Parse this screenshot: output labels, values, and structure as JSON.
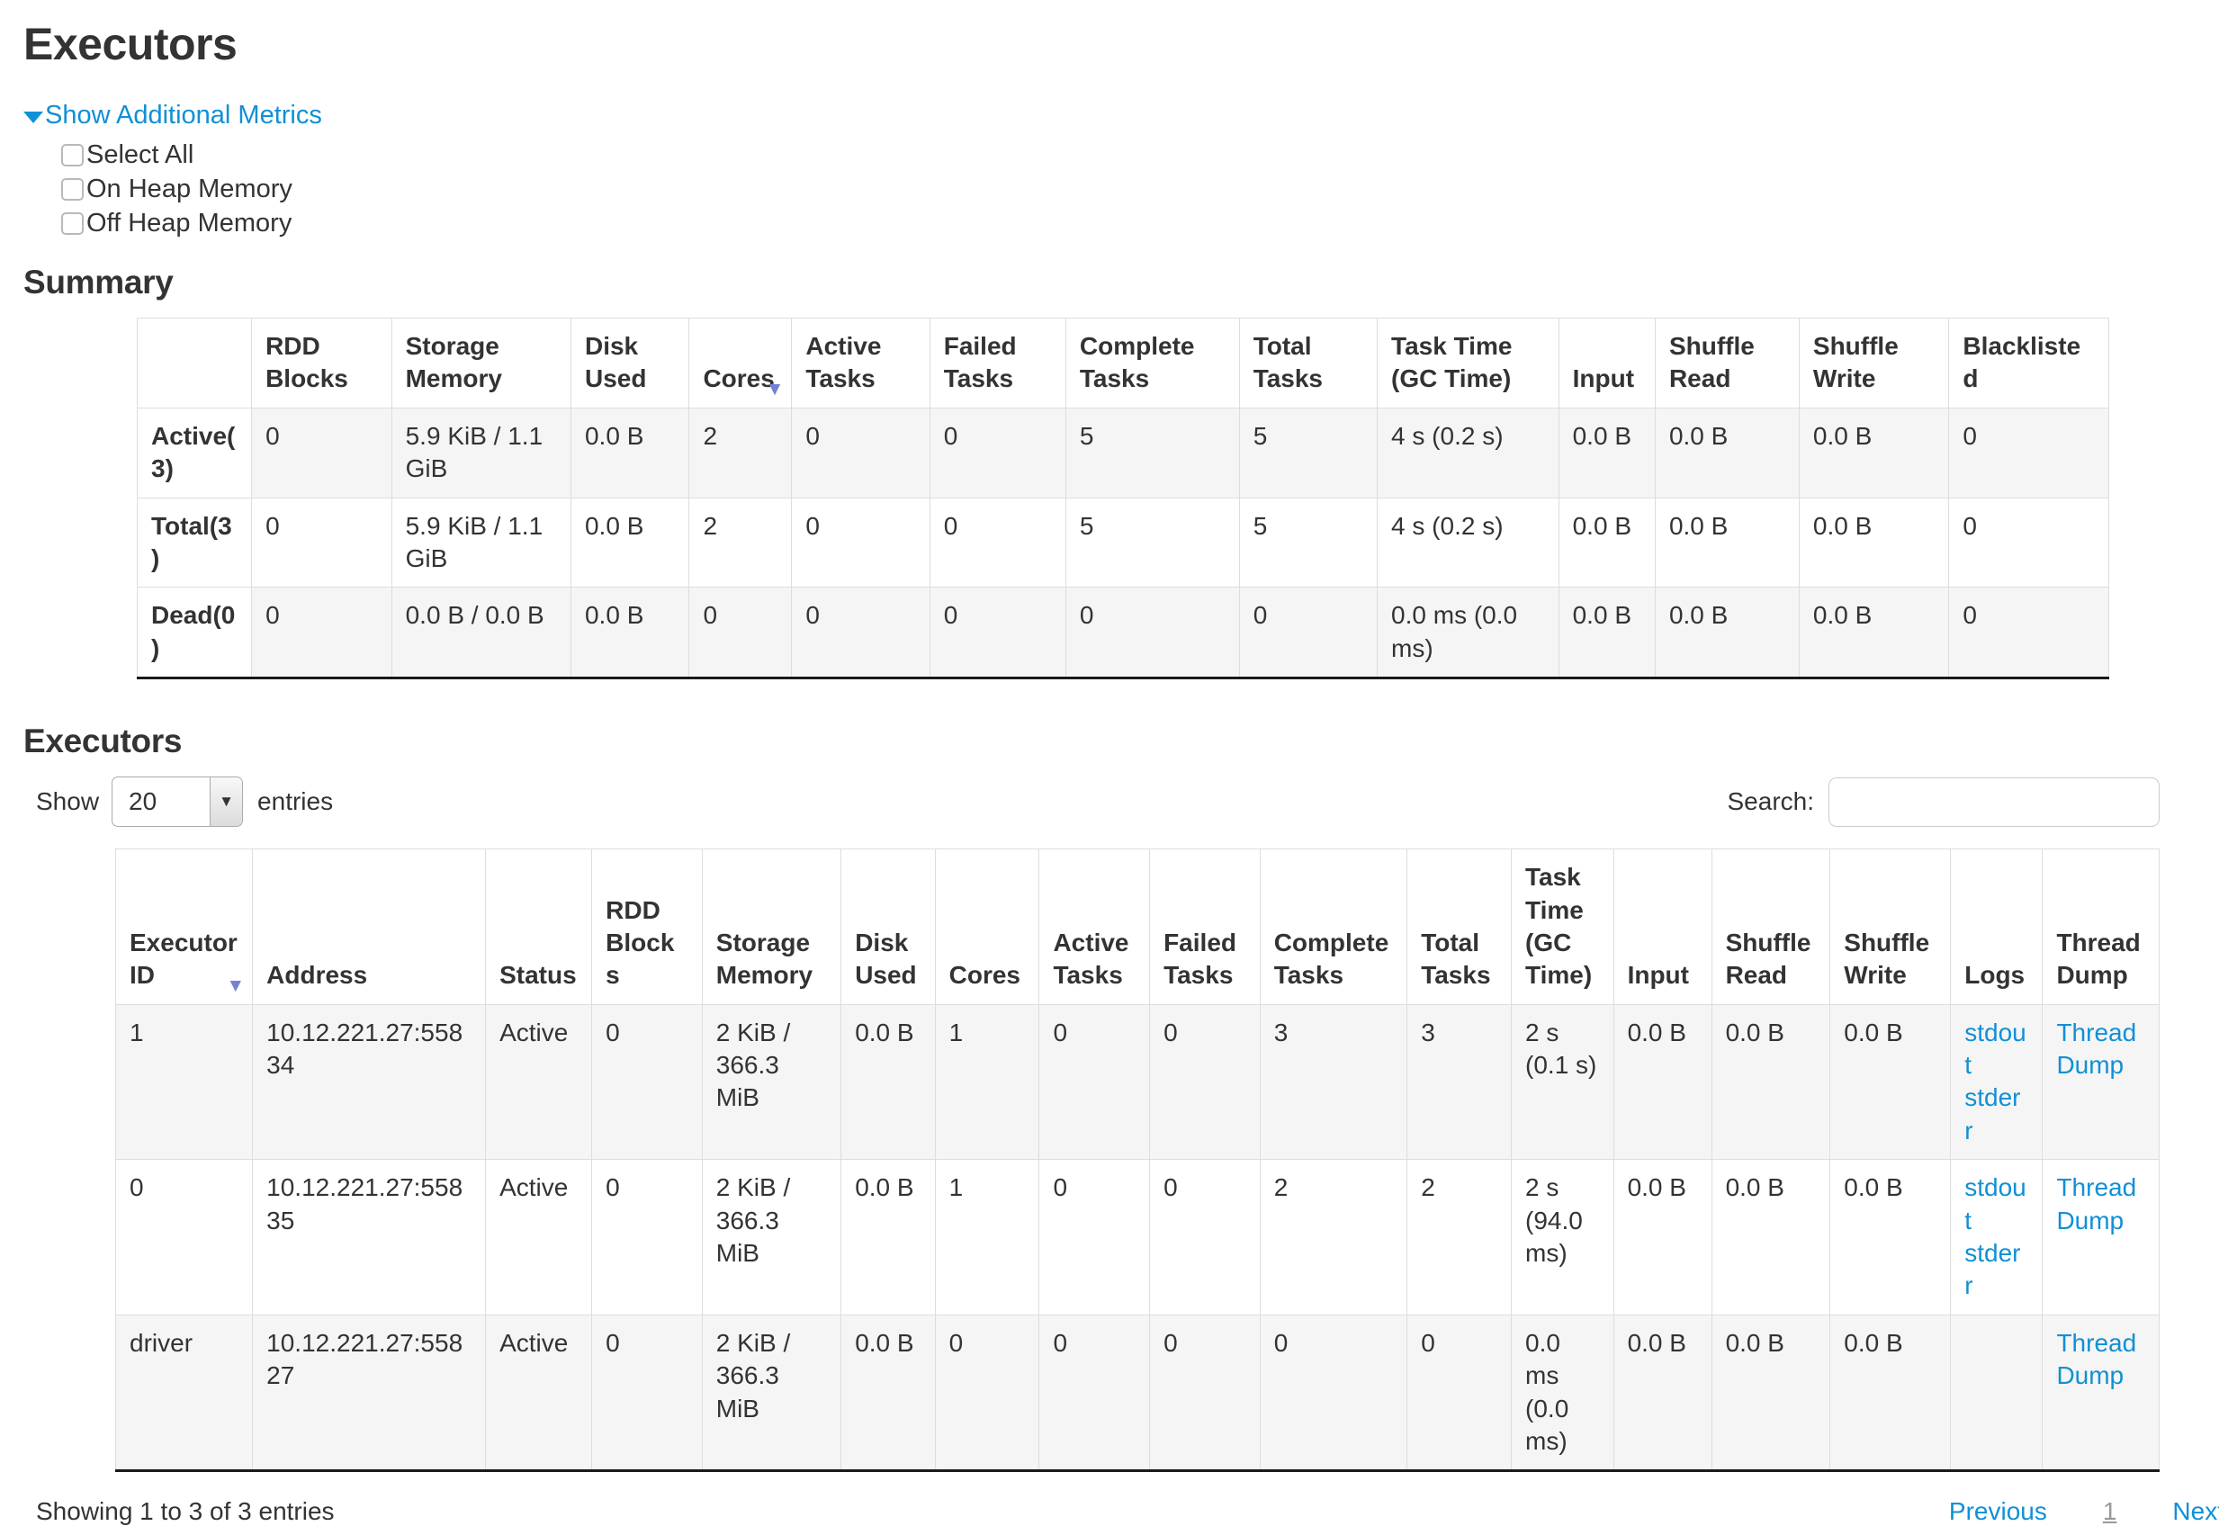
{
  "page": {
    "title": "Executors"
  },
  "metrics": {
    "toggle_label": "Show Additional Metrics",
    "options": [
      "Select All",
      "On Heap Memory",
      "Off Heap Memory"
    ]
  },
  "summary": {
    "heading": "Summary",
    "columns": [
      "",
      "RDD Blocks",
      "Storage Memory",
      "Disk Used",
      "Cores",
      "Active Tasks",
      "Failed Tasks",
      "Complete Tasks",
      "Total Tasks",
      "Task Time (GC Time)",
      "Input",
      "Shuffle Read",
      "Shuffle Write",
      "Blacklisted"
    ],
    "sorted_column_index": 4,
    "sort_icon": "▼",
    "rows": [
      {
        "label": "Active(3)",
        "values": [
          "0",
          "5.9 KiB / 1.1 GiB",
          "0.0 B",
          "2",
          "0",
          "0",
          "5",
          "5",
          "4 s (0.2 s)",
          "0.0 B",
          "0.0 B",
          "0.0 B",
          "0"
        ]
      },
      {
        "label": "Total(3)",
        "values": [
          "0",
          "5.9 KiB / 1.1 GiB",
          "0.0 B",
          "2",
          "0",
          "0",
          "5",
          "5",
          "4 s (0.2 s)",
          "0.0 B",
          "0.0 B",
          "0.0 B",
          "0"
        ]
      },
      {
        "label": "Dead(0)",
        "values": [
          "0",
          "0.0 B / 0.0 B",
          "0.0 B",
          "0",
          "0",
          "0",
          "0",
          "0",
          "0.0 ms (0.0 ms)",
          "0.0 B",
          "0.0 B",
          "0.0 B",
          "0"
        ]
      }
    ]
  },
  "executors": {
    "heading": "Executors",
    "show_label": "Show",
    "entries_value": "20",
    "entries_label": "entries",
    "search_label": "Search:",
    "search_value": "",
    "sorted_column_index": 0,
    "sort_icon": "▼",
    "columns": [
      {
        "label": "Executor ID",
        "key": "id"
      },
      {
        "label": "Address",
        "key": "address"
      },
      {
        "label": "Status",
        "key": "status"
      },
      {
        "label": "RDD Blocks",
        "key": "rdd_blocks"
      },
      {
        "label": "Storage Memory",
        "key": "storage_memory"
      },
      {
        "label": "Disk Used",
        "key": "disk_used"
      },
      {
        "label": "Cores",
        "key": "cores"
      },
      {
        "label": "Active Tasks",
        "key": "active_tasks"
      },
      {
        "label": "Failed Tasks",
        "key": "failed_tasks"
      },
      {
        "label": "Complete Tasks",
        "key": "complete_tasks"
      },
      {
        "label": "Total Tasks",
        "key": "total_tasks"
      },
      {
        "label": "Task Time (GC Time)",
        "key": "task_time"
      },
      {
        "label": "Input",
        "key": "input"
      },
      {
        "label": "Shuffle Read",
        "key": "shuffle_read"
      },
      {
        "label": "Shuffle Write",
        "key": "shuffle_write"
      },
      {
        "label": "Logs",
        "key": "logs"
      },
      {
        "label": "Thread Dump",
        "key": "thread_dump"
      }
    ],
    "rows": [
      {
        "id": "1",
        "address": "10.12.221.27:55834",
        "status": "Active",
        "rdd_blocks": "0",
        "storage_memory": "2 KiB / 366.3 MiB",
        "disk_used": "0.0 B",
        "cores": "1",
        "active_tasks": "0",
        "failed_tasks": "0",
        "complete_tasks": "3",
        "total_tasks": "3",
        "task_time": "2 s (0.1 s)",
        "input": "0.0 B",
        "shuffle_read": "0.0 B",
        "shuffle_write": "0.0 B",
        "logs": [
          "stdout",
          "stderr"
        ],
        "thread_dump": "Thread Dump"
      },
      {
        "id": "0",
        "address": "10.12.221.27:55835",
        "status": "Active",
        "rdd_blocks": "0",
        "storage_memory": "2 KiB / 366.3 MiB",
        "disk_used": "0.0 B",
        "cores": "1",
        "active_tasks": "0",
        "failed_tasks": "0",
        "complete_tasks": "2",
        "total_tasks": "2",
        "task_time": "2 s (94.0 ms)",
        "input": "0.0 B",
        "shuffle_read": "0.0 B",
        "shuffle_write": "0.0 B",
        "logs": [
          "stdout",
          "stderr"
        ],
        "thread_dump": "Thread Dump"
      },
      {
        "id": "driver",
        "address": "10.12.221.27:55827",
        "status": "Active",
        "rdd_blocks": "0",
        "storage_memory": "2 KiB / 366.3 MiB",
        "disk_used": "0.0 B",
        "cores": "0",
        "active_tasks": "0",
        "failed_tasks": "0",
        "complete_tasks": "0",
        "total_tasks": "0",
        "task_time": "0.0 ms (0.0 ms)",
        "input": "0.0 B",
        "shuffle_read": "0.0 B",
        "shuffle_write": "0.0 B",
        "logs": [],
        "thread_dump": "Thread Dump"
      }
    ],
    "footer": {
      "info": "Showing 1 to 3 of 3 entries",
      "previous_label": "Previous",
      "current_page": "1",
      "next_label": "Next"
    }
  },
  "colors": {
    "link": "#1090d6",
    "sort_arrow": "#7381d6",
    "row_stripe": "#f5f5f5",
    "border": "#dddddd",
    "table_bottom_border": "#1a1a1a",
    "text": "#333333"
  },
  "summary_col_widths": [
    5.8,
    7.1,
    9.1,
    6.0,
    5.2,
    7.0,
    6.9,
    8.8,
    7.0,
    9.2,
    4.9,
    7.3,
    7.6,
    8.1
  ],
  "executors_col_widths": [
    6.7,
    11.4,
    5.2,
    5.4,
    6.8,
    4.6,
    5.1,
    5.4,
    5.4,
    7.2,
    5.1,
    5.0,
    4.8,
    5.8,
    5.9,
    4.5,
    5.7
  ]
}
